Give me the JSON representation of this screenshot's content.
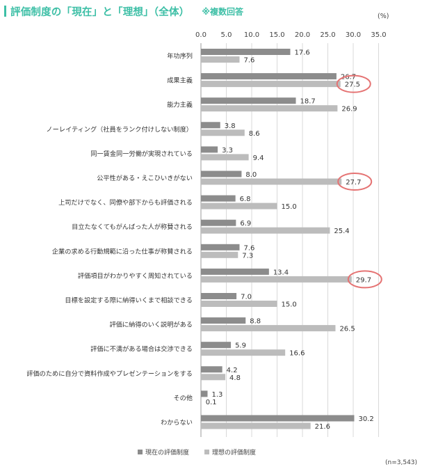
{
  "title": "評価制度の「現在」と「理想」（全体）",
  "subtitle": "※複数回答",
  "unit": "(%)",
  "sample_note": "(n=3,543)",
  "colors": {
    "accent": "#3dbfa6",
    "current": "#8c8c8c",
    "ideal": "#bcbcbc",
    "highlight": "#e57373",
    "axis": "#999999",
    "grid": "#d9d9d9"
  },
  "chart_data": {
    "type": "bar",
    "orientation": "horizontal",
    "categories": [
      "年功序列",
      "成果主義",
      "能力主義",
      "ノーレイティング（社員をランク付けしない制度）",
      "同一賃金同一労働が実現されている",
      "公平性がある・えこひいきがない",
      "上司だけでなく、同僚や部下からも評価される",
      "目立たなくてもがんばった人が称賛される",
      "企業の求める行動規範に沿った仕事が称賛される",
      "評価項目がわかりやすく周知されている",
      "目標を設定する際に納得いくまで相談できる",
      "評価に納得のいく説明がある",
      "評価に不満がある場合は交渉できる",
      "評価のために自分で資料作成やプレゼンテーションをする",
      "その他",
      "わからない"
    ],
    "series": [
      {
        "name": "現在の評価制度",
        "values": [
          17.6,
          26.7,
          18.7,
          3.8,
          3.3,
          8.0,
          6.8,
          6.9,
          7.6,
          13.4,
          7.0,
          8.8,
          5.9,
          4.2,
          1.3,
          30.2
        ]
      },
      {
        "name": "理想の評価制度",
        "values": [
          7.6,
          27.5,
          26.9,
          8.6,
          9.4,
          27.7,
          15.0,
          25.4,
          7.3,
          29.7,
          15.0,
          26.5,
          16.6,
          4.8,
          0.1,
          21.6
        ]
      }
    ],
    "xlim": [
      0,
      35
    ],
    "ticks": [
      "0.0",
      "5.0",
      "10.0",
      "15.0",
      "20.0",
      "25.0",
      "30.0",
      "35.0"
    ],
    "tick_values": [
      0,
      5,
      10,
      15,
      20,
      25,
      30,
      35
    ],
    "highlighted": [
      1,
      5,
      9
    ],
    "grid": true,
    "legend_position": "bottom"
  }
}
